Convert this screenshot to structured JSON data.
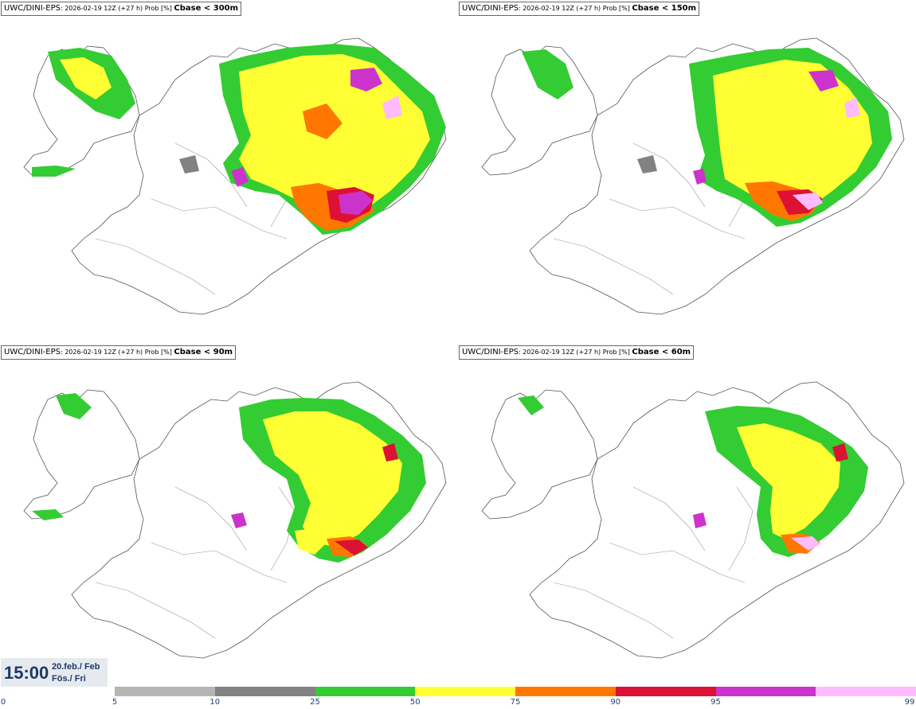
{
  "panels": [
    {
      "model": "UWC/DINI-EPS",
      "meta": ": 2026-02-19 12Z (+27 h) Prob [%] ",
      "variable": "Cbase < 300m"
    },
    {
      "model": "UWC/DINI-EPS",
      "meta": ": 2026-02-19 12Z (+27 h) Prob [%] ",
      "variable": "Cbase < 150m"
    },
    {
      "model": "UWC/DINI-EPS",
      "meta": ": 2026-02-19 12Z (+27 h) Prob [%] ",
      "variable": "Cbase < 90m"
    },
    {
      "model": "UWC/DINI-EPS",
      "meta": ": 2026-02-19 12Z (+27 h) Prob [%] ",
      "variable": "Cbase < 60m"
    }
  ],
  "valid_time": {
    "time": "15:00",
    "date_line1": "20.feb./ Feb",
    "date_line2": "Fös./ Fri"
  },
  "legend": {
    "ticks": [
      "0",
      "5",
      "10",
      "25",
      "50",
      "75",
      "90",
      "95",
      "99"
    ],
    "colors": [
      "#b5b5b5",
      "#828282",
      "#33cc33",
      "#ffff33",
      "#ff7700",
      "#dd1133",
      "#cc33cc",
      "#ffbbff"
    ]
  }
}
